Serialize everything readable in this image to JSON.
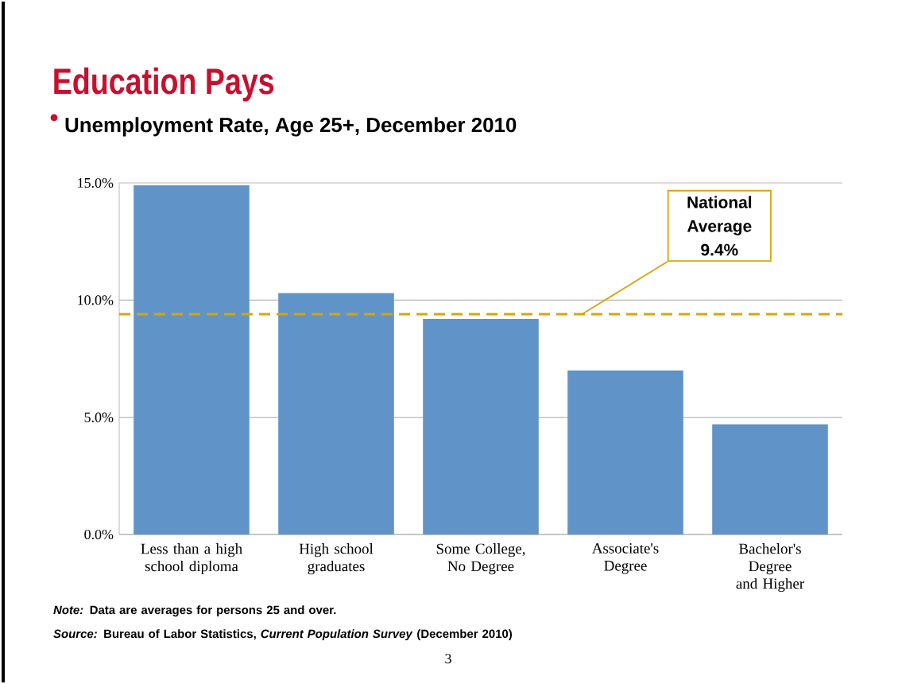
{
  "chart_data": {
    "type": "bar",
    "title": "Education Pays",
    "subtitle": "Unemployment Rate, Age 25+, December 2010",
    "categories": [
      "Less than a high school diploma",
      "High school graduates",
      "Some College, No Degree",
      "Associate's Degree",
      "Bachelor's Degree and Higher"
    ],
    "values": [
      14.9,
      10.3,
      9.2,
      7.0,
      4.7
    ],
    "color": "#6094c8",
    "ylim": [
      0,
      15
    ],
    "yticks": [
      {
        "value": 0,
        "label": "0.0%"
      },
      {
        "value": 5,
        "label": "5.0%"
      },
      {
        "value": 10,
        "label": "10.0%"
      },
      {
        "value": 15,
        "label": "15.0%"
      }
    ],
    "grid": "y",
    "ref_lines": [
      {
        "axis": "y",
        "value": 9.4,
        "label": "National Average 9.4%",
        "color": "#d9a40c",
        "line_style": "dashed"
      }
    ],
    "annotations": [
      "*Note:* Data are averages for persons 25 and over.",
      "*Source:* Bureau of Labor Statistics, *Current Population Survey* (December 2010)",
      "3"
    ]
  }
}
